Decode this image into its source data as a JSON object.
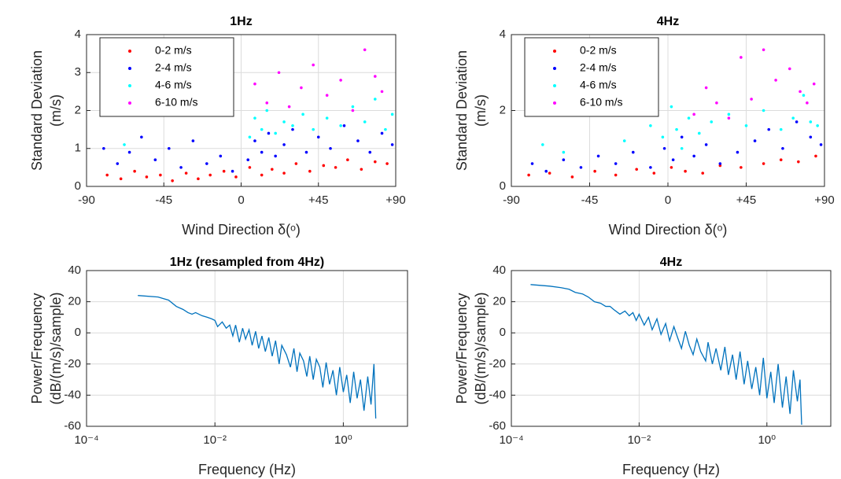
{
  "chart_data": [
    {
      "type": "scatter",
      "title": "1Hz",
      "xlabel": "Wind Direction δ(ᵒ)",
      "ylabel": [
        "Standard Deviation",
        "(m/s)"
      ],
      "xlim": [
        -90,
        90
      ],
      "ylim": [
        0,
        4
      ],
      "xticks": [
        -90,
        -45,
        0,
        {
          "value": 45,
          "label": "+45"
        },
        {
          "value": 90,
          "label": "+90"
        }
      ],
      "yticks": [
        0,
        1,
        2,
        3,
        4
      ],
      "grid": true,
      "legend": "upper left",
      "series": [
        {
          "name": "0-2 m/s",
          "color": "#ff0000",
          "x": [
            -78,
            -70,
            -62,
            -55,
            -47,
            -40,
            -32,
            -25,
            -18,
            -10,
            -3,
            5,
            12,
            18,
            25,
            32,
            40,
            48,
            55,
            62,
            70,
            78,
            85
          ],
          "values": [
            0.3,
            0.2,
            0.4,
            0.25,
            0.3,
            0.15,
            0.35,
            0.2,
            0.3,
            0.4,
            0.25,
            0.5,
            0.3,
            0.45,
            0.35,
            0.6,
            0.4,
            0.55,
            0.5,
            0.7,
            0.45,
            0.65,
            0.6
          ]
        },
        {
          "name": "2-4 m/s",
          "color": "#0000ff",
          "x": [
            -80,
            -72,
            -65,
            -58,
            -50,
            -42,
            -35,
            -28,
            -20,
            -12,
            -5,
            4,
            8,
            12,
            16,
            20,
            25,
            30,
            38,
            45,
            52,
            60,
            68,
            75,
            82,
            88
          ],
          "values": [
            1.0,
            0.6,
            0.9,
            1.3,
            0.7,
            1.0,
            0.5,
            1.2,
            0.6,
            0.8,
            0.4,
            0.7,
            1.2,
            0.9,
            1.4,
            0.8,
            1.1,
            1.5,
            0.9,
            1.3,
            1.0,
            1.6,
            1.2,
            0.9,
            1.4,
            1.1
          ]
        },
        {
          "name": "4-6 m/s",
          "color": "#00ffff",
          "x": [
            -68,
            5,
            8,
            12,
            15,
            20,
            25,
            30,
            36,
            42,
            50,
            58,
            65,
            72,
            78,
            84,
            88
          ],
          "values": [
            1.1,
            1.3,
            1.8,
            1.5,
            2.0,
            1.4,
            1.7,
            1.6,
            1.9,
            1.5,
            1.8,
            1.6,
            2.1,
            1.7,
            2.3,
            1.5,
            1.9
          ]
        },
        {
          "name": "6-10 m/s",
          "color": "#ff00ff",
          "x": [
            8,
            15,
            22,
            28,
            35,
            42,
            50,
            58,
            65,
            72,
            78,
            82
          ],
          "values": [
            2.7,
            2.2,
            3.0,
            2.1,
            2.6,
            3.2,
            2.4,
            2.8,
            2.0,
            3.6,
            2.9,
            2.5
          ]
        }
      ]
    },
    {
      "type": "scatter",
      "title": "4Hz",
      "xlabel": "Wind Direction δ(ᵒ)",
      "ylabel": [
        "Standard Deviation",
        "(m/s)"
      ],
      "xlim": [
        -90,
        90
      ],
      "ylim": [
        0,
        4
      ],
      "xticks": [
        -90,
        -45,
        0,
        {
          "value": 45,
          "label": "+45"
        },
        {
          "value": 90,
          "label": "+90"
        }
      ],
      "yticks": [
        0,
        2,
        4
      ],
      "grid": true,
      "legend": "upper left",
      "series": [
        {
          "name": "0-2 m/s",
          "color": "#ff0000",
          "x": [
            -80,
            -68,
            -55,
            -42,
            -30,
            -18,
            -8,
            2,
            10,
            20,
            30,
            42,
            55,
            65,
            75,
            85
          ],
          "values": [
            0.3,
            0.35,
            0.25,
            0.4,
            0.3,
            0.45,
            0.35,
            0.5,
            0.4,
            0.35,
            0.55,
            0.5,
            0.6,
            0.7,
            0.65,
            0.8
          ]
        },
        {
          "name": "2-4 m/s",
          "color": "#0000ff",
          "x": [
            -78,
            -70,
            -60,
            -50,
            -40,
            -30,
            -20,
            -10,
            -2,
            3,
            8,
            15,
            22,
            30,
            40,
            50,
            58,
            66,
            74,
            82,
            88
          ],
          "values": [
            0.6,
            0.4,
            0.7,
            0.5,
            0.8,
            0.6,
            0.9,
            0.5,
            1.0,
            0.7,
            1.3,
            0.8,
            1.1,
            0.6,
            0.9,
            1.2,
            1.5,
            1.0,
            1.7,
            1.3,
            1.1
          ]
        },
        {
          "name": "4-6 m/s",
          "color": "#00ffff",
          "x": [
            -72,
            -60,
            -25,
            -10,
            -3,
            2,
            5,
            8,
            12,
            18,
            25,
            35,
            45,
            55,
            65,
            72,
            78,
            82,
            86
          ],
          "values": [
            1.1,
            0.9,
            1.2,
            1.6,
            1.3,
            2.1,
            1.5,
            1.0,
            1.8,
            1.4,
            1.7,
            1.9,
            1.6,
            2.0,
            1.5,
            1.8,
            2.4,
            1.7,
            1.6
          ]
        },
        {
          "name": "6-10 m/s",
          "color": "#ff00ff",
          "x": [
            15,
            22,
            28,
            35,
            42,
            48,
            55,
            62,
            70,
            76,
            80,
            84
          ],
          "values": [
            1.9,
            2.6,
            2.2,
            1.8,
            3.4,
            2.3,
            3.6,
            2.8,
            3.1,
            2.5,
            2.2,
            2.7
          ]
        }
      ]
    },
    {
      "type": "line",
      "title": "1Hz (resampled from 4Hz)",
      "xlabel": "Frequency (Hz)",
      "ylabel": [
        "Power/Frequency",
        "(dB/(m/s)/sample)"
      ],
      "log_x": true,
      "xlim": [
        0.0001,
        10
      ],
      "ylim": [
        -60,
        40
      ],
      "xticks": [
        {
          "value": 0.0001,
          "label": "10⁻⁴"
        },
        {
          "value": 0.01,
          "label": "10⁻²"
        },
        {
          "value": 1,
          "label": "10⁰"
        }
      ],
      "yticks": [
        -60,
        -40,
        -20,
        0,
        20,
        40
      ],
      "grid": true,
      "x": [
        0.00063,
        0.0013,
        0.0019,
        0.0025,
        0.0032,
        0.0038,
        0.0044,
        0.005,
        0.0063,
        0.0076,
        0.0089,
        0.01,
        0.011,
        0.013,
        0.015,
        0.017,
        0.019,
        0.021,
        0.024,
        0.027,
        0.03,
        0.034,
        0.038,
        0.043,
        0.048,
        0.054,
        0.061,
        0.069,
        0.078,
        0.088,
        0.1,
        0.11,
        0.13,
        0.15,
        0.17,
        0.19,
        0.21,
        0.24,
        0.27,
        0.3,
        0.34,
        0.38,
        0.43,
        0.48,
        0.54,
        0.61,
        0.69,
        0.78,
        0.88,
        1,
        1.13,
        1.28,
        1.45,
        1.64,
        1.85,
        2.1,
        2.4,
        2.7,
        3,
        3.2
      ],
      "series": [
        {
          "color": "#0072bd",
          "values": [
            24,
            23,
            21,
            17,
            15,
            13,
            12,
            13,
            11,
            10,
            9,
            8,
            4,
            7,
            3,
            5,
            -2,
            5,
            -6,
            3,
            -4,
            2,
            -8,
            1,
            -10,
            -2,
            -12,
            -3,
            -15,
            -5,
            -20,
            -8,
            -14,
            -22,
            -10,
            -25,
            -13,
            -18,
            -28,
            -15,
            -30,
            -17,
            -22,
            -35,
            -19,
            -33,
            -24,
            -40,
            -22,
            -38,
            -27,
            -45,
            -25,
            -42,
            -30,
            -50,
            -28,
            -46,
            -20,
            -55
          ]
        }
      ]
    },
    {
      "type": "line",
      "title": "4Hz",
      "xlabel": "Frequency (Hz)",
      "ylabel": [
        "Power/Frequency",
        "(dB/(m/s)/sample)"
      ],
      "log_x": true,
      "xlim": [
        0.0001,
        10
      ],
      "ylim": [
        -60,
        40
      ],
      "xticks": [
        {
          "value": 0.0001,
          "label": "10⁻⁴"
        },
        {
          "value": 0.01,
          "label": "10⁻²"
        },
        {
          "value": 1,
          "label": "10⁰"
        }
      ],
      "yticks": [
        -60,
        -40,
        -20,
        0,
        20,
        40
      ],
      "grid": true,
      "x": [
        0.0002,
        0.0004,
        0.0006,
        0.0008,
        0.001,
        0.0013,
        0.0016,
        0.002,
        0.0025,
        0.003,
        0.0035,
        0.004,
        0.005,
        0.006,
        0.007,
        0.008,
        0.009,
        0.01,
        0.012,
        0.014,
        0.016,
        0.019,
        0.022,
        0.026,
        0.03,
        0.035,
        0.04,
        0.046,
        0.053,
        0.061,
        0.07,
        0.08,
        0.092,
        0.11,
        0.12,
        0.14,
        0.16,
        0.19,
        0.22,
        0.25,
        0.29,
        0.33,
        0.38,
        0.44,
        0.5,
        0.58,
        0.67,
        0.77,
        0.88,
        1,
        1.15,
        1.3,
        1.5,
        1.75,
        2,
        2.3,
        2.6,
        3,
        3.3,
        3.5
      ],
      "series": [
        {
          "color": "#0072bd",
          "values": [
            31,
            30,
            29,
            28,
            26,
            25,
            23,
            20,
            19,
            17,
            17,
            15,
            12,
            14,
            11,
            13,
            8,
            12,
            5,
            10,
            2,
            9,
            -1,
            6,
            -5,
            4,
            -3,
            -10,
            1,
            -8,
            -14,
            -4,
            -12,
            -18,
            -6,
            -20,
            -10,
            -24,
            -9,
            -27,
            -14,
            -30,
            -12,
            -33,
            -18,
            -36,
            -22,
            -40,
            -16,
            -42,
            -25,
            -45,
            -20,
            -48,
            -28,
            -52,
            -24,
            -44,
            -30,
            -59
          ]
        }
      ]
    }
  ]
}
